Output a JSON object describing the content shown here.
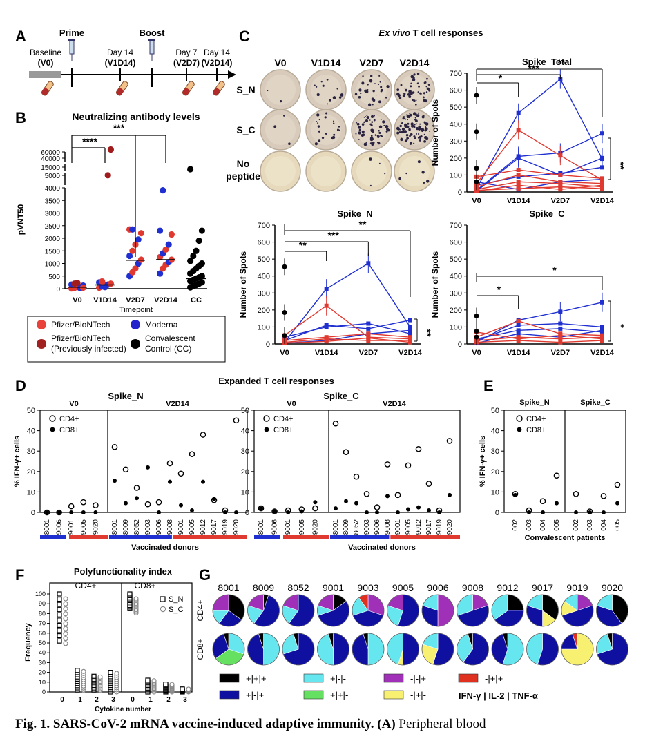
{
  "caption": {
    "prefix": "Fig. 1. SARS-CoV-2 mRNA vaccine-induced adaptive immunity.",
    "panel": "(A)",
    "rest": " Peripheral blood"
  },
  "panelA": {
    "letter": "A",
    "events": [
      {
        "label": "Prime",
        "sub": ""
      },
      {
        "label": "Boost",
        "sub": ""
      }
    ],
    "timepoints": [
      {
        "top": "Baseline",
        "bottom": "(V0)"
      },
      {
        "top": "Day 14",
        "bottom": "(V1D14)"
      },
      {
        "top": "Day 7",
        "bottom": "(V2D7)"
      },
      {
        "top": "Day 14",
        "bottom": "(V2D14)"
      }
    ]
  },
  "panelB": {
    "letter": "B",
    "chart_data": {
      "type": "scatter",
      "title": "Neutralizing antibody levels",
      "ylabel": "pVNT50",
      "xlabel": "Timepoint",
      "categories": [
        "V0",
        "V1D14",
        "V2D7",
        "V2D14",
        "CC"
      ],
      "yticks": [
        "0",
        "500",
        "1000",
        "1500",
        "2000",
        "2500",
        "3000",
        "3500",
        "4000",
        "5000",
        "15000",
        "40000",
        "60000"
      ],
      "significance": [
        "****",
        "***"
      ],
      "medians": [
        60,
        150,
        1130,
        1150,
        400
      ],
      "points": {
        "V0": [
          {
            "v": 10,
            "g": "pfizer"
          },
          {
            "v": 30,
            "g": "pfizer"
          },
          {
            "v": 60,
            "g": "pfizer"
          },
          {
            "v": 80,
            "g": "pfizer"
          },
          {
            "v": 120,
            "g": "moderna"
          },
          {
            "v": 160,
            "g": "moderna"
          },
          {
            "v": 200,
            "g": "prev"
          },
          {
            "v": 230,
            "g": "prev"
          },
          {
            "v": 20,
            "g": "moderna"
          },
          {
            "v": 40,
            "g": "pfizer"
          }
        ],
        "V1D14": [
          {
            "v": 40,
            "g": "pfizer"
          },
          {
            "v": 90,
            "g": "moderna"
          },
          {
            "v": 130,
            "g": "pfizer"
          },
          {
            "v": 160,
            "g": "moderna"
          },
          {
            "v": 200,
            "g": "pfizer"
          },
          {
            "v": 250,
            "g": "moderna"
          },
          {
            "v": 290,
            "g": "pfizer"
          },
          {
            "v": 60,
            "g": "moderna"
          },
          {
            "v": 5200,
            "g": "prev"
          },
          {
            "v": 45000,
            "g": "prev"
          }
        ],
        "V2D7": [
          {
            "v": 500,
            "g": "moderna"
          },
          {
            "v": 650,
            "g": "pfizer"
          },
          {
            "v": 800,
            "g": "pfizer"
          },
          {
            "v": 1000,
            "g": "moderna"
          },
          {
            "v": 1150,
            "g": "pfizer"
          },
          {
            "v": 1300,
            "g": "moderna"
          },
          {
            "v": 1500,
            "g": "pfizer"
          },
          {
            "v": 1750,
            "g": "pfizer"
          },
          {
            "v": 1950,
            "g": "moderna"
          },
          {
            "v": 2200,
            "g": "pfizer"
          },
          {
            "v": 2350,
            "g": "pfizer"
          },
          {
            "v": 2350,
            "g": "moderna"
          }
        ],
        "V2D14": [
          {
            "v": 600,
            "g": "moderna"
          },
          {
            "v": 800,
            "g": "pfizer"
          },
          {
            "v": 950,
            "g": "pfizer"
          },
          {
            "v": 1050,
            "g": "moderna"
          },
          {
            "v": 1150,
            "g": "pfizer"
          },
          {
            "v": 1250,
            "g": "pfizer"
          },
          {
            "v": 1400,
            "g": "moderna"
          },
          {
            "v": 1550,
            "g": "pfizer"
          },
          {
            "v": 1750,
            "g": "moderna"
          },
          {
            "v": 2150,
            "g": "pfizer"
          },
          {
            "v": 2300,
            "g": "moderna"
          },
          {
            "v": 3900,
            "g": "moderna"
          }
        ],
        "CC": [
          {
            "v": 50,
            "g": "cc"
          },
          {
            "v": 100,
            "g": "cc"
          },
          {
            "v": 150,
            "g": "cc"
          },
          {
            "v": 200,
            "g": "cc"
          },
          {
            "v": 250,
            "g": "cc"
          },
          {
            "v": 300,
            "g": "cc"
          },
          {
            "v": 350,
            "g": "cc"
          },
          {
            "v": 400,
            "g": "cc"
          },
          {
            "v": 450,
            "g": "cc"
          },
          {
            "v": 500,
            "g": "cc"
          },
          {
            "v": 600,
            "g": "cc"
          },
          {
            "v": 700,
            "g": "cc"
          },
          {
            "v": 800,
            "g": "cc"
          },
          {
            "v": 900,
            "g": "cc"
          },
          {
            "v": 1000,
            "g": "cc"
          },
          {
            "v": 1100,
            "g": "cc"
          },
          {
            "v": 1300,
            "g": "cc"
          },
          {
            "v": 1500,
            "g": "cc"
          },
          {
            "v": 1900,
            "g": "cc"
          },
          {
            "v": 2300,
            "g": "cc"
          },
          {
            "v": 14000,
            "g": "cc"
          }
        ]
      }
    },
    "legend": [
      {
        "label": "Pfizer/BioNTech",
        "color": "#e8423a"
      },
      {
        "label": "Moderna",
        "color": "#2222cc"
      },
      {
        "label": "Pfizer/BioNTech (Previously infected)",
        "line1": "Pfizer/BioNTech",
        "line2": "(Previously infected)",
        "color": "#a12020"
      },
      {
        "label": "Convalescent Control (CC)",
        "line1": "Convalescent",
        "line2": "Control (CC)",
        "color": "#000000"
      }
    ]
  },
  "panelC": {
    "letter": "C",
    "title": "Ex vivo T cell responses",
    "title_italic": "Ex vivo",
    "title_rest": " T cell responses",
    "well_cols": [
      "V0",
      "V1D14",
      "V2D7",
      "V2D14"
    ],
    "well_rows": [
      "S_N",
      "S_C",
      "No peptide"
    ],
    "well_rows_two_line": [
      "No",
      "peptide"
    ],
    "charts": [
      {
        "type": "line",
        "title": "Spike_Total",
        "ylabel": "Number of Spots",
        "categories": [
          "V0",
          "V1D14",
          "V2D7",
          "V2D14"
        ],
        "ylim": [
          0,
          700
        ],
        "yticks": [
          0,
          100,
          200,
          300,
          400,
          500,
          600,
          700
        ],
        "significance": [
          "*",
          "***",
          "**"
        ],
        "right_sig": "**",
        "series": [
          {
            "color": "blue",
            "values": [
              20,
              465,
              665,
              195
            ]
          },
          {
            "color": "blue",
            "values": [
              10,
              210,
              230,
              345
            ]
          },
          {
            "color": "blue",
            "values": [
              40,
              90,
              110,
              145
            ]
          },
          {
            "color": "blue",
            "values": [
              5,
              200,
              100,
              200
            ]
          },
          {
            "color": "blue",
            "values": [
              60,
              15,
              60,
              75
            ]
          },
          {
            "color": "red",
            "values": [
              50,
              365,
              215,
              70
            ]
          },
          {
            "color": "red",
            "values": [
              30,
              100,
              60,
              50
            ]
          },
          {
            "color": "red",
            "values": [
              15,
              60,
              50,
              30
            ]
          },
          {
            "color": "red",
            "values": [
              10,
              20,
              30,
              20
            ]
          },
          {
            "color": "red",
            "values": [
              5,
              40,
              15,
              40
            ]
          },
          {
            "color": "red",
            "values": [
              90,
              130,
              100,
              80
            ]
          }
        ],
        "black": [
          570,
          355,
          140,
          60
        ]
      },
      {
        "type": "line",
        "title": "Spike_N",
        "ylabel": "Number of Spots",
        "categories": [
          "V0",
          "V1D14",
          "V2D7",
          "V2D14"
        ],
        "ylim": [
          0,
          700
        ],
        "yticks": [
          0,
          100,
          200,
          300,
          400,
          500,
          600,
          700
        ],
        "significance": [
          "**",
          "***",
          "**"
        ],
        "right_sig": "**",
        "series": [
          {
            "color": "blue",
            "values": [
              10,
              325,
              475,
              100
            ]
          },
          {
            "color": "blue",
            "values": [
              20,
              110,
              90,
              140
            ]
          },
          {
            "color": "blue",
            "values": [
              40,
              100,
              120,
              60
            ]
          },
          {
            "color": "blue",
            "values": [
              5,
              20,
              60,
              80
            ]
          },
          {
            "color": "red",
            "values": [
              50,
              225,
              40,
              30
            ]
          },
          {
            "color": "red",
            "values": [
              20,
              40,
              60,
              40
            ]
          },
          {
            "color": "red",
            "values": [
              10,
              30,
              20,
              20
            ]
          },
          {
            "color": "red",
            "values": [
              5,
              15,
              35,
              10
            ]
          }
        ],
        "black": [
          455,
          185,
          50
        ]
      },
      {
        "type": "line",
        "title": "Spike_C",
        "ylabel": "Number of Spots",
        "categories": [
          "V0",
          "V1D14",
          "V2D7",
          "V2D14"
        ],
        "ylim": [
          0,
          700
        ],
        "yticks": [
          0,
          100,
          200,
          300,
          400,
          500,
          600,
          700
        ],
        "significance": [
          "*",
          "*"
        ],
        "right_sig": "*",
        "series": [
          {
            "color": "blue",
            "values": [
              10,
              140,
              190,
              245
            ]
          },
          {
            "color": "blue",
            "values": [
              20,
              110,
              120,
              100
            ]
          },
          {
            "color": "blue",
            "values": [
              30,
              80,
              90,
              70
            ]
          },
          {
            "color": "blue",
            "values": [
              5,
              60,
              40,
              80
            ]
          },
          {
            "color": "red",
            "values": [
              40,
              135,
              60,
              50
            ]
          },
          {
            "color": "red",
            "values": [
              20,
              40,
              30,
              40
            ]
          },
          {
            "color": "red",
            "values": [
              10,
              20,
              10,
              20
            ]
          },
          {
            "color": "red",
            "values": [
              70,
              30,
              50,
              30
            ]
          }
        ],
        "black": [
          165,
          75,
          40
        ]
      }
    ]
  },
  "panelD": {
    "letter": "D",
    "title": "Expanded T cell responses",
    "charts": [
      {
        "title": "Spike_N",
        "sub_v0": "V0",
        "sub_v2": "V2D14",
        "ylabel": "% IFN-γ+ cells",
        "xlabel": "Vaccinated donors",
        "yticks": [
          0,
          10,
          20,
          30,
          40,
          50
        ],
        "v0_donors": [
          "8001",
          "9006",
          "9001",
          "9005",
          "9020"
        ],
        "v2_donors": [
          "8001",
          "8009",
          "8052",
          "9003",
          "9006",
          "9008",
          "9001",
          "9005",
          "9012",
          "9017",
          "9019",
          "9020"
        ],
        "cd4_v0": [
          0,
          0,
          3,
          5,
          3.5
        ],
        "cd8_v0": [
          0,
          0,
          0,
          0,
          0
        ],
        "cd4_v2": [
          32,
          21,
          12,
          4,
          5,
          24,
          19,
          28.5,
          38,
          6,
          1,
          45
        ],
        "cd8_v2": [
          15.5,
          4.5,
          7,
          22,
          0,
          15,
          3.5,
          1,
          15,
          6.5,
          0,
          0
        ]
      },
      {
        "title": "Spike_C",
        "sub_v0": "V0",
        "sub_v2": "V2D14",
        "ylabel": "",
        "xlabel": "Vaccinated donors",
        "yticks": [
          0,
          10,
          20,
          30,
          40,
          50
        ],
        "v0_donors": [
          "8001",
          "9006",
          "9001",
          "9005",
          "9020"
        ],
        "v2_donors": [
          "8001",
          "8009",
          "8052",
          "9003",
          "9006",
          "9008",
          "9001",
          "9005",
          "9012",
          "9017",
          "9019",
          "9020"
        ],
        "cd4_v0": [
          2,
          0.5,
          1,
          1.5,
          2
        ],
        "cd8_v0": [
          2,
          0.5,
          0,
          0.5,
          5
        ],
        "cd4_v2": [
          43.5,
          29.5,
          17.5,
          9,
          2.5,
          23.5,
          8.5,
          23,
          31,
          14,
          1,
          35
        ],
        "cd8_v2": [
          2,
          5.5,
          4.5,
          0,
          0,
          8,
          0,
          1.5,
          2.5,
          1,
          0,
          8.5
        ]
      }
    ],
    "legend": [
      "CD4+",
      "CD8+"
    ]
  },
  "panelE": {
    "letter": "E",
    "groups": [
      "Spike_N",
      "Spike_C"
    ],
    "ylabel": "% IFN-γ+ cells",
    "xlabel": "Convalescent patients",
    "patients": [
      "002",
      "003",
      "004",
      "005"
    ],
    "yticks": [
      0,
      10,
      20,
      30,
      40,
      50
    ],
    "cd4": [
      [
        9,
        1,
        5.5,
        18
      ],
      [
        9,
        0.5,
        8,
        13.5
      ]
    ],
    "cd8": [
      [
        8.5,
        0,
        0,
        4.5
      ],
      [
        0,
        0,
        0,
        4.5
      ]
    ],
    "legend": [
      "CD4+",
      "CD8+"
    ]
  },
  "panelF": {
    "letter": "F",
    "title": "Polyfunctionality index",
    "groups": [
      "CD4+",
      "CD8+"
    ],
    "ylabel": "Frequency",
    "xlabel": "Cytokine number",
    "xticks": [
      "0",
      "1",
      "2",
      "3"
    ],
    "yticks": [
      0,
      10,
      20,
      30,
      40,
      50,
      60,
      70,
      80,
      90,
      100
    ],
    "legend": [
      "S_N",
      "S_C"
    ]
  },
  "panelG": {
    "letter": "G",
    "donors": [
      "8001",
      "8009",
      "8052",
      "9001",
      "9003",
      "9005",
      "9006",
      "9008",
      "9012",
      "9017",
      "9019",
      "9020"
    ],
    "rows": [
      "CD4+",
      "CD8+"
    ],
    "colors": {
      "ppp": "#000000",
      "pnn": "#66e6ee",
      "nnp": "#a030b8",
      "npp": "#e03020",
      "pnp": "#1010a0",
      "ppn": "#66e060",
      "npn": "#f8f070"
    },
    "legend": [
      {
        "key": "ppp",
        "label": "+|+|+"
      },
      {
        "key": "pnn",
        "label": "+|-|-"
      },
      {
        "key": "nnp",
        "label": "-|-|+"
      },
      {
        "key": "npp",
        "label": "-|+|+"
      },
      {
        "key": "pnp",
        "label": "+|-|+"
      },
      {
        "key": "ppn",
        "label": "+|+|-"
      },
      {
        "key": "npn",
        "label": "-|+|-"
      }
    ],
    "legend_key": "IFN-γ | IL-2 | TNF-α"
  }
}
